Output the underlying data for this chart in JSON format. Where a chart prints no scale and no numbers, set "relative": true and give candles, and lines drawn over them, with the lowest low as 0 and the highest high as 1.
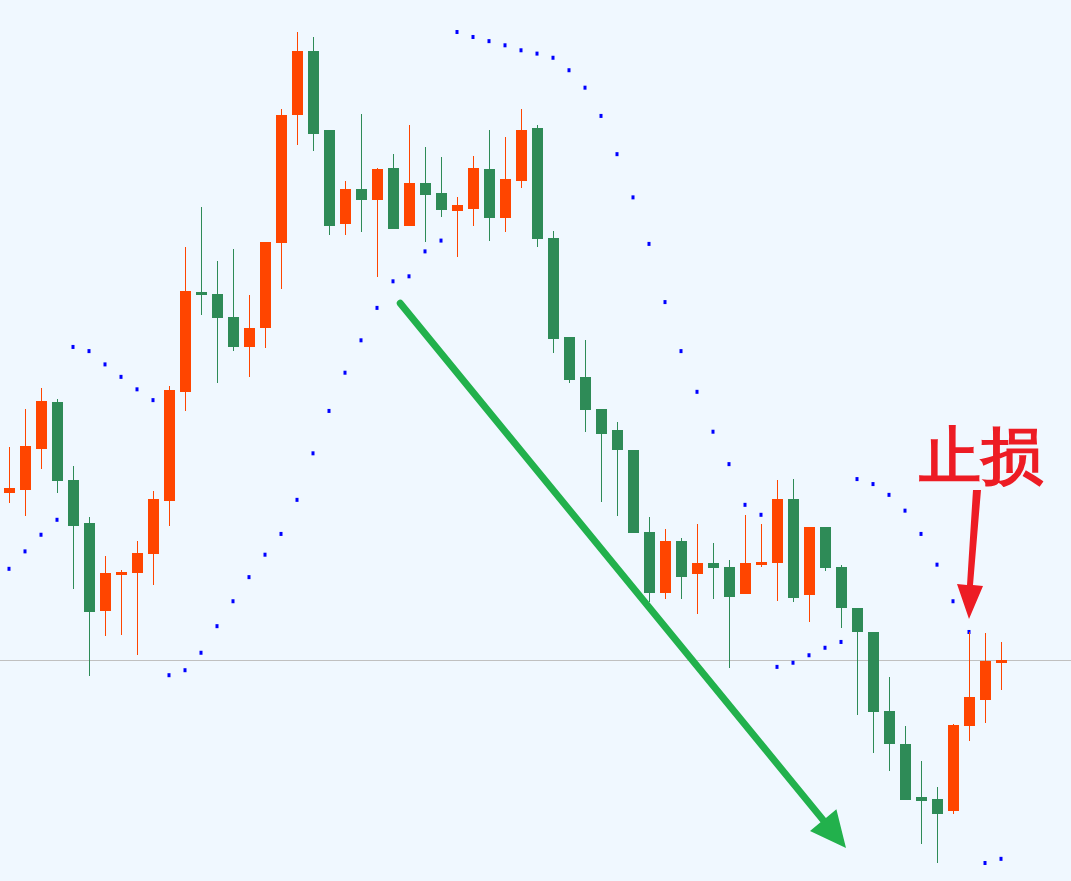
{
  "chart_data": {
    "type": "candlestick",
    "relative": true,
    "categories": [
      null,
      null,
      null,
      null,
      null,
      null,
      null,
      null,
      null,
      null,
      null,
      null,
      null,
      null,
      null,
      null,
      null,
      null,
      null,
      null,
      null,
      null,
      null,
      null,
      null,
      null,
      null,
      null,
      null,
      null,
      null,
      null,
      null,
      null,
      null,
      null,
      null,
      null,
      null,
      null,
      null,
      null,
      null,
      null,
      null,
      null,
      null,
      null,
      null,
      null,
      null,
      null,
      null,
      null,
      null,
      null,
      null,
      null,
      null,
      null,
      null,
      null,
      null
    ],
    "ohlc": [
      [
        0.446,
        0.501,
        0.433,
        0.451
      ],
      [
        0.45,
        0.546,
        0.418,
        0.501
      ],
      [
        0.499,
        0.572,
        0.474,
        0.555
      ],
      [
        0.554,
        0.558,
        0.445,
        0.46
      ],
      [
        0.46,
        0.478,
        0.33,
        0.406
      ],
      [
        0.408,
        0.416,
        0.225,
        0.303
      ],
      [
        0.304,
        0.369,
        0.273,
        0.348
      ],
      [
        0.347,
        0.353,
        0.274,
        0.35
      ],
      [
        0.349,
        0.387,
        0.25,
        0.373
      ],
      [
        0.372,
        0.448,
        0.335,
        0.437
      ],
      [
        0.436,
        0.574,
        0.406,
        0.568
      ],
      [
        0.567,
        0.741,
        0.544,
        0.688
      ],
      [
        0.686,
        0.789,
        0.659,
        0.684
      ],
      [
        0.684,
        0.724,
        0.578,
        0.656
      ],
      [
        0.656,
        0.739,
        0.616,
        0.621
      ],
      [
        0.621,
        0.684,
        0.585,
        0.643
      ],
      [
        0.644,
        0.747,
        0.62,
        0.747
      ],
      [
        0.747,
        0.907,
        0.691,
        0.9
      ],
      [
        0.901,
        1,
        0.864,
        0.976
      ],
      [
        0.977,
        0.994,
        0.857,
        0.878
      ],
      [
        0.881,
        0.881,
        0.756,
        0.767
      ],
      [
        0.769,
        0.821,
        0.756,
        0.81
      ],
      [
        0.81,
        0.901,
        0.759,
        0.799
      ],
      [
        0.799,
        0.836,
        0.705,
        0.835
      ],
      [
        0.836,
        0.853,
        0.763,
        0.763
      ],
      [
        0.767,
        0.888,
        0.767,
        0.818
      ],
      [
        0.818,
        0.862,
        0.747,
        0.804
      ],
      [
        0.806,
        0.85,
        0.777,
        0.786
      ],
      [
        0.785,
        0.801,
        0.729,
        0.791
      ],
      [
        0.788,
        0.851,
        0.767,
        0.836
      ],
      [
        0.835,
        0.882,
        0.749,
        0.777
      ],
      [
        0.777,
        0.874,
        0.759,
        0.822
      ],
      [
        0.821,
        0.907,
        0.812,
        0.882
      ],
      [
        0.884,
        0.888,
        0.741,
        0.751
      ],
      [
        0.751,
        0.761,
        0.614,
        0.631
      ],
      [
        0.632,
        0.633,
        0.578,
        0.582
      ],
      [
        0.584,
        0.629,
        0.519,
        0.546
      ],
      [
        0.546,
        0.546,
        0.434,
        0.517
      ],
      [
        0.521,
        0.531,
        0.418,
        0.497
      ],
      [
        0.496,
        0.496,
        0.398,
        0.398
      ],
      [
        0.398,
        0.416,
        0.314,
        0.326
      ],
      [
        0.326,
        0.402,
        0.318,
        0.387
      ],
      [
        0.387,
        0.391,
        0.318,
        0.345
      ],
      [
        0.348,
        0.408,
        0.3,
        0.361
      ],
      [
        0.361,
        0.385,
        0.318,
        0.355
      ],
      [
        0.356,
        0.365,
        0.235,
        0.321
      ],
      [
        0.324,
        0.419,
        0.324,
        0.361
      ],
      [
        0.359,
        0.408,
        0.356,
        0.362
      ],
      [
        0.362,
        0.461,
        0.315,
        0.437
      ],
      [
        0.437,
        0.462,
        0.314,
        0.32
      ],
      [
        0.323,
        0.404,
        0.29,
        0.404
      ],
      [
        0.404,
        0.404,
        0.351,
        0.355
      ],
      [
        0.355,
        0.359,
        0.283,
        0.308
      ],
      [
        0.306,
        0.306,
        0.178,
        0.278
      ],
      [
        0.277,
        0.277,
        0.132,
        0.182
      ],
      [
        0.182,
        0.224,
        0.111,
        0.144
      ],
      [
        0.143,
        0.165,
        0.076,
        0.077
      ],
      [
        0.079,
        0.123,
        0.023,
        0.075
      ],
      [
        0.077,
        0.091,
        0,
        0.06
      ],
      [
        0.063,
        0.167,
        0.059,
        0.166
      ],
      [
        0.165,
        0.278,
        0.147,
        0.199
      ],
      [
        0.197,
        0.277,
        0.168,
        0.242
      ],
      [
        0.241,
        0.266,
        0.208,
        0.244
      ]
    ],
    "colors": [
      "#ff4500",
      "#ff4500",
      "#ff4500",
      "#2e8b57",
      "#2e8b57",
      "#2e8b57",
      "#ff4500",
      "#ff4500",
      "#ff4500",
      "#ff4500",
      "#ff4500",
      "#ff4500",
      "#2e8b57",
      "#2e8b57",
      "#2e8b57",
      "#ff4500",
      "#ff4500",
      "#ff4500",
      "#ff4500",
      "#2e8b57",
      "#2e8b57",
      "#ff4500",
      "#2e8b57",
      "#ff4500",
      "#2e8b57",
      "#ff4500",
      "#2e8b57",
      "#2e8b57",
      "#ff4500",
      "#ff4500",
      "#2e8b57",
      "#ff4500",
      "#ff4500",
      "#2e8b57",
      "#2e8b57",
      "#2e8b57",
      "#2e8b57",
      "#2e8b57",
      "#2e8b57",
      "#2e8b57",
      "#2e8b57",
      "#ff4500",
      "#2e8b57",
      "#ff4500",
      "#2e8b57",
      "#2e8b57",
      "#ff4500",
      "#ff4500",
      "#ff4500",
      "#2e8b57",
      "#ff4500",
      "#2e8b57",
      "#2e8b57",
      "#2e8b57",
      "#2e8b57",
      "#2e8b57",
      "#2e8b57",
      "#2e8b57",
      "#2e8b57",
      "#ff4500",
      "#ff4500",
      "#ff4500",
      "#ff4500"
    ],
    "series": [
      {
        "type": "scatter",
        "marker": "square",
        "color": "#0000ff",
        "values": [
          0.354,
          0.375,
          0.395,
          0.413,
          0.621,
          0.616,
          0.6,
          0.585,
          0.57,
          0.557,
          0.226,
          0.232,
          0.253,
          0.285,
          0.315,
          0.344,
          0.371,
          0.396,
          0.437,
          0.493,
          0.544,
          0.59,
          0.629,
          0.668,
          0.7,
          0.706,
          0.736,
          0.749,
          1,
          0.994,
          0.989,
          0.984,
          0.978,
          0.974,
          0.969,
          0.954,
          0.933,
          0.899,
          0.853,
          0.801,
          0.745,
          0.675,
          0.616,
          0.567,
          0.519,
          0.48,
          0.431,
          0.419,
          0.236,
          0.241,
          0.25,
          0.259,
          0.266,
          0.462,
          0.456,
          0.443,
          0.424,
          0.396,
          0.359,
          0.315,
          0.278,
          0,
          0.005
        ]
      }
    ],
    "ref_lines": [
      {
        "axis": "y",
        "value": 0.244,
        "color": "#c0c0c0"
      }
    ],
    "annotations": [
      "止损"
    ]
  }
}
